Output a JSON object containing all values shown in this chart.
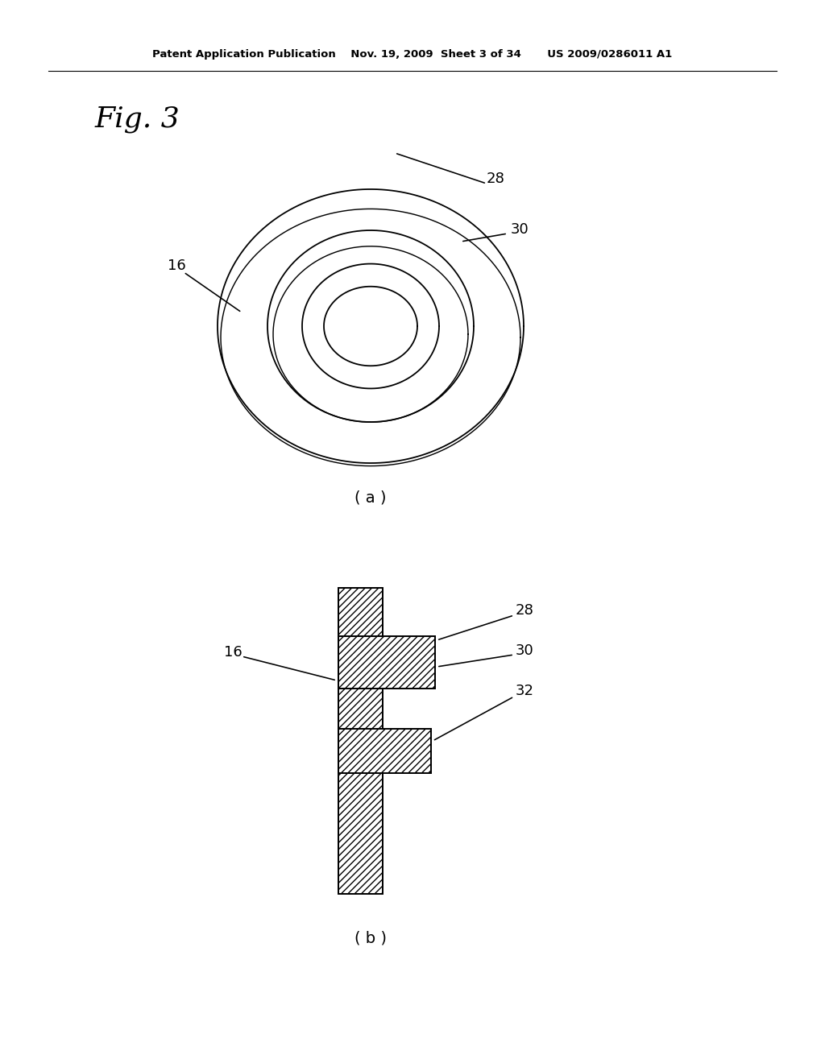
{
  "bg_color": "#ffffff",
  "line_color": "#000000",
  "header_text": "Patent Application Publication    Nov. 19, 2009  Sheet 3 of 34       US 2009/0286011 A1",
  "fig_label": "Fig. 3",
  "label_a": "( a )",
  "label_b": "( b )"
}
